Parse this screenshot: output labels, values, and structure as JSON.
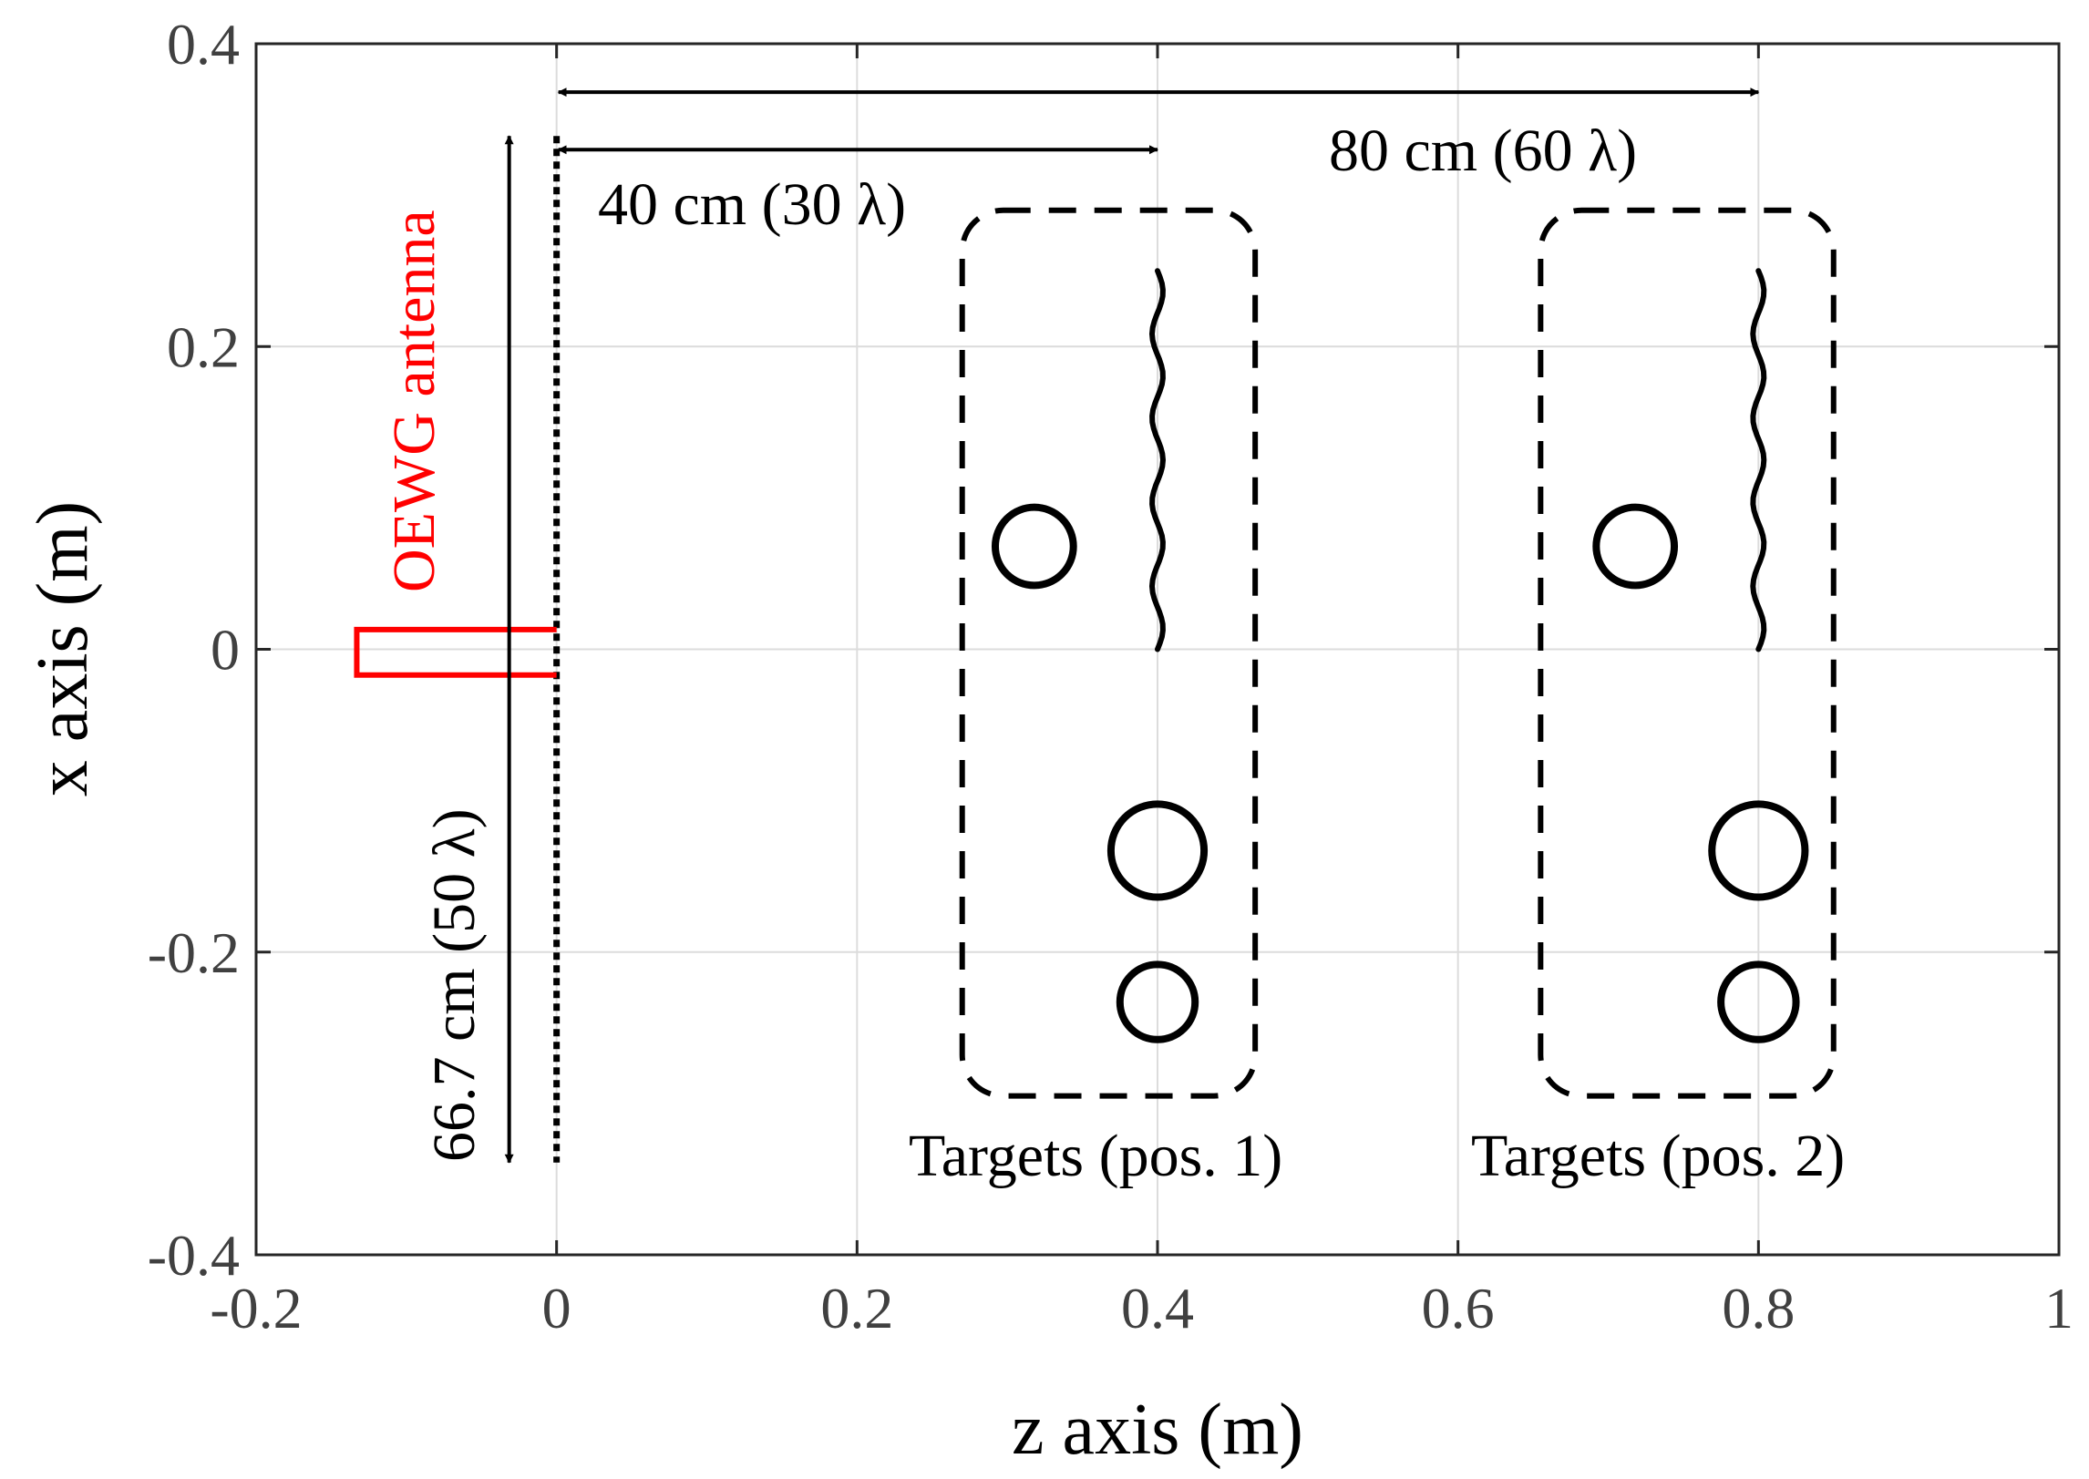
{
  "chart_data": {
    "type": "scatter",
    "title": "",
    "xlabel": "z axis (m)",
    "ylabel": "x axis (m)",
    "xlim": [
      -0.2,
      1.0
    ],
    "ylim": [
      -0.4,
      0.4
    ],
    "grid": true,
    "xticks": [
      -0.2,
      0,
      0.2,
      0.4,
      0.6,
      0.8,
      1.0
    ],
    "xtick_labels": [
      "-0.2",
      "0",
      "0.2",
      "0.4",
      "0.6",
      "0.8",
      "1"
    ],
    "yticks": [
      -0.4,
      -0.2,
      0,
      0.2,
      0.4
    ],
    "ytick_labels": [
      "-0.4",
      "-0.2",
      "0",
      "0.2",
      "0.4"
    ],
    "antenna_aperture": {
      "z": 0,
      "x_range": [
        -0.333,
        0.333
      ]
    },
    "antenna_color": "#ff0000",
    "antenna_outline": {
      "z_range": [
        -0.133,
        0
      ],
      "x_range": [
        -0.017,
        0.013
      ]
    },
    "target_groups": [
      {
        "label": "Targets (pos. 1)",
        "box": {
          "z_range": [
            0.27,
            0.465
          ],
          "x_range": [
            -0.295,
            0.29
          ]
        },
        "circles": [
          {
            "z": 0.318,
            "x": 0.068,
            "r": 0.026
          },
          {
            "z": 0.4,
            "x": -0.133,
            "r": 0.031
          },
          {
            "z": 0.4,
            "x": -0.233,
            "r": 0.025
          }
        ],
        "wire": {
          "z": 0.4,
          "x_range": [
            0.0,
            0.25
          ]
        }
      },
      {
        "label": "Targets (pos. 2)",
        "box": {
          "z_range": [
            0.655,
            0.85
          ],
          "x_range": [
            -0.295,
            0.29
          ]
        },
        "circles": [
          {
            "z": 0.718,
            "x": 0.068,
            "r": 0.026
          },
          {
            "z": 0.8,
            "x": -0.133,
            "r": 0.031
          },
          {
            "z": 0.8,
            "x": -0.233,
            "r": 0.025
          }
        ],
        "wire": {
          "z": 0.8,
          "x_range": [
            0.0,
            0.25
          ]
        }
      }
    ],
    "annotations": {
      "antenna_label": "OEWG antenna",
      "aperture_label": "66.7 cm (50 λ)",
      "distance_1_label": "40 cm (30 λ)",
      "distance_2_label": "80 cm (60 λ)",
      "distance_1_z": [
        0,
        0.4
      ],
      "distance_2_z": [
        0,
        0.8
      ],
      "distance_1_x": 0.33,
      "distance_2_x": 0.368
    }
  }
}
